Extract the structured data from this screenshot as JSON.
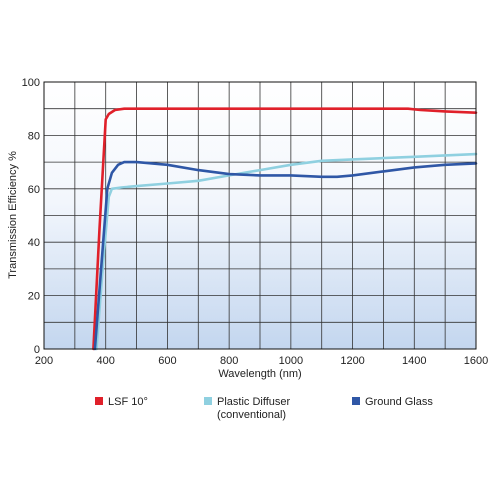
{
  "chart_data": {
    "type": "line",
    "xlabel": "Wavelength (nm)",
    "ylabel": "Transmission Efficiency %",
    "xlim": [
      200,
      1600
    ],
    "ylim": [
      0,
      100
    ],
    "x_ticks": [
      200,
      400,
      600,
      800,
      1000,
      1200,
      1400,
      1600
    ],
    "y_ticks": [
      0,
      20,
      40,
      60,
      80,
      100
    ],
    "grid": true,
    "legend_position": "bottom",
    "series": [
      {
        "name": "LSF 10°",
        "color": "#e0202a",
        "x": [
          360,
          380,
          400,
          410,
          430,
          460,
          600,
          800,
          1000,
          1200,
          1380,
          1420,
          1500,
          1600
        ],
        "y": [
          0,
          45,
          86,
          88,
          89.5,
          90,
          90,
          90,
          90,
          90,
          90,
          89.5,
          89,
          88.5
        ]
      },
      {
        "name": "Plastic Diffuser (conventional)",
        "legend_lines": [
          "Plastic Diffuser",
          "(conventional)"
        ],
        "color": "#8fd0e0",
        "x": [
          370,
          390,
          410,
          420,
          450,
          500,
          600,
          700,
          800,
          900,
          1000,
          1100,
          1200,
          1300,
          1400,
          1500,
          1600
        ],
        "y": [
          0,
          30,
          57,
          60,
          60.5,
          61,
          62,
          63,
          65,
          67,
          69,
          70.5,
          71,
          71.5,
          72,
          72.5,
          73
        ]
      },
      {
        "name": "Ground Glass",
        "color": "#2f57a6",
        "x": [
          365,
          385,
          405,
          420,
          440,
          460,
          500,
          550,
          600,
          700,
          800,
          900,
          1000,
          1100,
          1150,
          1200,
          1300,
          1400,
          1500,
          1600
        ],
        "y": [
          0,
          30,
          60,
          66,
          69,
          70,
          70,
          69.5,
          69,
          67,
          65.5,
          65,
          65,
          64.5,
          64.5,
          65,
          66.5,
          68,
          69,
          69.5
        ]
      }
    ]
  }
}
